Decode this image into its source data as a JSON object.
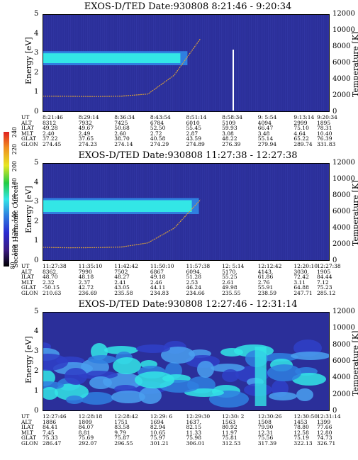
{
  "colors": {
    "background_low": "#2b2f9a",
    "band": "#33e6e6",
    "band_edge": "#2f7fe0",
    "temperature_trace": "#d9a03a"
  },
  "colorbar": {
    "label": "Second Harmonic Current",
    "ticks": [
      "240",
      "220",
      "200",
      "180",
      "160",
      "140",
      "120",
      "100",
      "80"
    ]
  },
  "chart_data": [
    {
      "type": "heatmap",
      "title": "EXOS-D/TED   Date:930808   8:21:46 - 9:20:34",
      "ylabel": "Energy [eV]",
      "ylabel_right": "Temperature [K]",
      "ylim": [
        0,
        5
      ],
      "ylim_right": [
        0,
        12000
      ],
      "yticks": [
        "0",
        "1",
        "2",
        "3",
        "4",
        "5"
      ],
      "yticks_right": [
        "0",
        "2000",
        "4000",
        "6000",
        "8000",
        "10000",
        "12000"
      ],
      "band": {
        "energy_low": 2.5,
        "energy_high": 3.0,
        "until_fraction": 0.48
      },
      "temperature_trend": [
        1950,
        1930,
        1900,
        1950,
        2200,
        4500,
        9000
      ],
      "table": {
        "labels": [
          "UT",
          "ALT",
          "ILAT",
          "MLT",
          "GLAT",
          "GLON"
        ],
        "columns": [
          [
            "8:21:46",
            "8312",
            "49.28",
            "2.40",
            "37.22",
            "274.45"
          ],
          [
            "8:29:14",
            "7932",
            "49.67",
            "2.49",
            "37.65",
            "274.23"
          ],
          [
            "8:36:34",
            "7425",
            "50.68",
            "2.60",
            "38.70",
            "274.14"
          ],
          [
            "8:43:54",
            "6784",
            "52.50",
            "2.72",
            "40.58",
            "274.29"
          ],
          [
            "8:51:14",
            "6010",
            "55.45",
            "2.87",
            "43.59",
            "274.89"
          ],
          [
            "8:58:34",
            "5109",
            "59.93",
            "3.08",
            "48.22",
            "276.39"
          ],
          [
            "9: 5:54",
            "4094",
            "66.47",
            "3.48",
            "55.14",
            "279.94"
          ],
          [
            "9:13:14",
            "2999",
            "75.10",
            "4.64",
            "65.22",
            "289.74"
          ],
          [
            "9:20:34",
            "1895",
            "78.31",
            "10.40",
            "76.39",
            "331.83"
          ]
        ]
      }
    },
    {
      "type": "heatmap",
      "title": "EXOS-D/TED   Date:930808   11:27:38 - 12:27:38",
      "ylabel": "Energy [eV]",
      "ylabel_right": "Temperature [K]",
      "ylim": [
        0,
        5
      ],
      "ylim_right": [
        0,
        12000
      ],
      "yticks": [
        "0",
        "1",
        "2",
        "3",
        "4",
        "5"
      ],
      "yticks_right": [
        "0",
        "2000",
        "4000",
        "6000",
        "8000",
        "10000",
        "12000"
      ],
      "band": {
        "energy_low": 2.5,
        "energy_high": 3.1,
        "until_fraction": 0.52
      },
      "temperature_trend": [
        1650,
        1600,
        1620,
        1700,
        2200,
        4000,
        7500
      ],
      "table": {
        "labels": [
          "UT",
          "ALT",
          "ILAT",
          "MLT",
          "GLAT",
          "GLON"
        ],
        "columns": [
          [
            "11:27:38",
            "8362.",
            "48.70",
            "2.32",
            "-50.15",
            "210.63"
          ],
          [
            "11:35:10",
            "7990",
            "48.18",
            "2.37",
            "42.72",
            "236.69"
          ],
          [
            "11:42:42",
            "7502",
            "48.27",
            "2.41",
            "43.05",
            "235.58"
          ],
          [
            "11:50:10",
            "6867",
            "49.18",
            "2.46",
            "44.11",
            "234.83"
          ],
          [
            "11:57:38",
            "6094.",
            "51.28",
            "2.53",
            "46.24",
            "234.66"
          ],
          [
            "12: 5:14",
            "5170.",
            "55.25",
            "2.61",
            "49.98",
            "235.55"
          ],
          [
            "12:12:42",
            "4143.",
            "61.86",
            "2.76",
            "55.91",
            "238.59"
          ],
          [
            "12:20:10",
            "3030.",
            "72.42",
            "3.11",
            "64.88",
            "247.71"
          ],
          [
            "12:27:38",
            "1905",
            "84.44",
            "7.12",
            "75.23",
            "285.12"
          ]
        ]
      }
    },
    {
      "type": "heatmap",
      "title": "EXOS-D/TED   Date:930808   12:27:46 - 12:31:14",
      "ylabel": "Energy [eV]",
      "ylabel_right": "Temperature [K]",
      "ylim": [
        0,
        5
      ],
      "ylim_right": [
        0,
        12000
      ],
      "yticks": [
        "0",
        "1",
        "2",
        "3",
        "4",
        "5"
      ],
      "yticks_right": [
        "0",
        "2000",
        "4000",
        "6000",
        "8000",
        "10000",
        "12000"
      ],
      "table": {
        "labels": [
          "UT",
          "ALT",
          "ILAT",
          "MLT",
          "GLAT",
          "GLON"
        ],
        "columns": [
          [
            "12:27:46",
            "1886",
            "84.41",
            "7.45",
            "75.33",
            "286.47"
          ],
          [
            "12:28:18",
            "1809",
            "84.07",
            "8.81",
            "75.69",
            "292.07"
          ],
          [
            "12:28:42",
            "1751",
            "83.58",
            "9.79",
            "75.87",
            "296.55"
          ],
          [
            "12:29: 6",
            "1694",
            "82.94",
            "10.65",
            "75.97",
            "301.21"
          ],
          [
            "12:29:30",
            "1637.",
            "82.15",
            "11.33",
            "75.98",
            "306.01"
          ],
          [
            "12:30: 2",
            "1563",
            "80.92",
            "11.97",
            "75.81",
            "312.53"
          ],
          [
            "12:30:26",
            "1508",
            "79.90",
            "12.31",
            "75.56",
            "317.39"
          ],
          [
            "12:30:50",
            "1453",
            "78.80",
            "12.58",
            "75.19",
            "322.13"
          ],
          [
            "12:31:14",
            "1399",
            "77.66",
            "12.80",
            "74.73",
            "326.71"
          ]
        ]
      }
    }
  ]
}
